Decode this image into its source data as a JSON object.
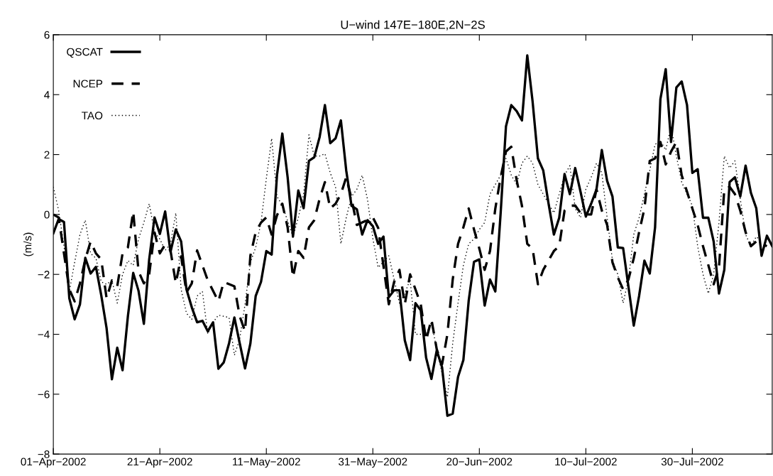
{
  "chart_data": {
    "type": "line",
    "title": "U−wind 147E−180E,2N−2S",
    "ylabel": "(m/s)",
    "xlim": [
      "2002-04-01",
      "2002-08-14"
    ],
    "xticks": [
      {
        "value": "2002-04-01",
        "label": "01−Apr−2002"
      },
      {
        "value": "2002-04-21",
        "label": "21−Apr−2002"
      },
      {
        "value": "2002-05-11",
        "label": "11−May−2002"
      },
      {
        "value": "2002-05-31",
        "label": "31−May−2002"
      },
      {
        "value": "2002-06-20",
        "label": "20−Jun−2002"
      },
      {
        "value": "2002-07-10",
        "label": "10−Jul−2002"
      },
      {
        "value": "2002-07-30",
        "label": "30−Jul−2002"
      }
    ],
    "ylim": [
      -8,
      6
    ],
    "yticks": [
      {
        "value": -8,
        "label": "−8"
      },
      {
        "value": -6,
        "label": "−6"
      },
      {
        "value": -4,
        "label": "−4"
      },
      {
        "value": -2,
        "label": "−2"
      },
      0,
      2,
      4,
      6
    ],
    "tick_labels": "xy",
    "grid": false,
    "legend": "top left",
    "marker": "none",
    "x": [
      "2002-04-01",
      "2002-04-02",
      "2002-04-03",
      "2002-04-04",
      "2002-04-05",
      "2002-04-06",
      "2002-04-07",
      "2002-04-08",
      "2002-04-09",
      "2002-04-10",
      "2002-04-11",
      "2002-04-12",
      "2002-04-13",
      "2002-04-14",
      "2002-04-15",
      "2002-04-16",
      "2002-04-17",
      "2002-04-18",
      "2002-04-19",
      "2002-04-20",
      "2002-04-21",
      "2002-04-22",
      "2002-04-23",
      "2002-04-24",
      "2002-04-25",
      "2002-04-26",
      "2002-04-27",
      "2002-04-28",
      "2002-04-29",
      "2002-04-30",
      "2002-05-01",
      "2002-05-02",
      "2002-05-03",
      "2002-05-04",
      "2002-05-05",
      "2002-05-06",
      "2002-05-07",
      "2002-05-08",
      "2002-05-09",
      "2002-05-10",
      "2002-05-11",
      "2002-05-12",
      "2002-05-13",
      "2002-05-14",
      "2002-05-15",
      "2002-05-16",
      "2002-05-17",
      "2002-05-18",
      "2002-05-19",
      "2002-05-20",
      "2002-05-21",
      "2002-05-22",
      "2002-05-23",
      "2002-05-24",
      "2002-05-25",
      "2002-05-26",
      "2002-05-27",
      "2002-05-28",
      "2002-05-29",
      "2002-05-30",
      "2002-05-31",
      "2002-06-01",
      "2002-06-02",
      "2002-06-03",
      "2002-06-04",
      "2002-06-05",
      "2002-06-06",
      "2002-06-07",
      "2002-06-08",
      "2002-06-09",
      "2002-06-10",
      "2002-06-11",
      "2002-06-12",
      "2002-06-13",
      "2002-06-14",
      "2002-06-15",
      "2002-06-16",
      "2002-06-17",
      "2002-06-18",
      "2002-06-19",
      "2002-06-20",
      "2002-06-21",
      "2002-06-22",
      "2002-06-23",
      "2002-06-24",
      "2002-06-25",
      "2002-06-26",
      "2002-06-27",
      "2002-06-28",
      "2002-06-29",
      "2002-06-30",
      "2002-07-01",
      "2002-07-02",
      "2002-07-03",
      "2002-07-04",
      "2002-07-05",
      "2002-07-06",
      "2002-07-07",
      "2002-07-08",
      "2002-07-09",
      "2002-07-10",
      "2002-07-11",
      "2002-07-12",
      "2002-07-13",
      "2002-07-14",
      "2002-07-15",
      "2002-07-16",
      "2002-07-17",
      "2002-07-18",
      "2002-07-19",
      "2002-07-20",
      "2002-07-21",
      "2002-07-22",
      "2002-07-23",
      "2002-07-24",
      "2002-07-25",
      "2002-07-26",
      "2002-07-27",
      "2002-07-28",
      "2002-07-29",
      "2002-07-30",
      "2002-07-31",
      "2002-08-01",
      "2002-08-02",
      "2002-08-03",
      "2002-08-04",
      "2002-08-05",
      "2002-08-06",
      "2002-08-07",
      "2002-08-08",
      "2002-08-09",
      "2002-08-10",
      "2002-08-11",
      "2002-08-12",
      "2002-08-13",
      "2002-08-14"
    ],
    "series": [
      {
        "name": "QSCAT",
        "color": "#000000",
        "line_style": "solid",
        "values": [
          -0.63,
          -0.15,
          -0.25,
          -2.8,
          -3.5,
          -3.0,
          -1.45,
          -1.97,
          -1.75,
          -2.7,
          -3.8,
          -5.5,
          -4.45,
          -5.2,
          -3.4,
          -1.95,
          -2.55,
          -3.65,
          -1.5,
          -0.1,
          -0.65,
          0.1,
          -1.25,
          -0.5,
          -0.9,
          -2.5,
          -3.1,
          -3.6,
          -3.55,
          -3.9,
          -3.6,
          -5.15,
          -4.94,
          -4.3,
          -3.44,
          -4.3,
          -5.14,
          -4.31,
          -2.72,
          -2.25,
          -1.22,
          -1.34,
          1.31,
          2.7,
          1.24,
          -0.74,
          0.8,
          0.21,
          1.79,
          1.91,
          2.58,
          3.65,
          2.38,
          2.54,
          3.14,
          1.47,
          0.29,
          0.17,
          -0.67,
          -0.19,
          -0.39,
          -0.98,
          -0.74,
          -2.76,
          -2.53,
          -2.53,
          -4.2,
          -4.86,
          -2.96,
          -3.2,
          -4.78,
          -5.49,
          -4.54,
          -5.1,
          -6.72,
          -6.65,
          -5.42,
          -4.86,
          -2.88,
          -1.58,
          -1.5,
          -3.04,
          -2.17,
          -2.57,
          0.05,
          2.94,
          3.65,
          3.45,
          3.14,
          5.31,
          3.77,
          1.87,
          1.47,
          0.36,
          -0.67,
          -0.11,
          1.35,
          0.68,
          1.55,
          0.76,
          -0.07,
          0.36,
          0.84,
          2.15,
          1.12,
          0.6,
          -1.1,
          -1.12,
          -2.41,
          -3.71,
          -2.72,
          -1.54,
          -1.97,
          -0.43,
          3.85,
          4.85,
          2.42,
          4.24,
          4.44,
          3.65,
          1.39,
          1.51,
          -0.11,
          -0.11,
          -0.9,
          -2.64,
          -1.85,
          1.08,
          1.24,
          0.6,
          1.63,
          0.72,
          0.21,
          -1.38,
          -0.71,
          -1.06
        ]
      },
      {
        "name": "NCEP",
        "color": "#000000",
        "line_style": "dashed",
        "x": [
          "2002-04-01",
          "2002-04-02",
          "2002-04-04",
          "2002-04-05",
          "2002-04-06",
          "2002-04-07",
          "2002-04-08",
          "2002-04-09",
          "2002-04-10",
          "2002-04-11",
          "2002-04-12",
          "2002-04-13",
          "2002-04-14",
          "2002-04-15",
          "2002-04-16",
          "2002-04-17",
          "2002-04-18",
          "2002-04-19",
          "2002-04-20",
          "2002-04-21",
          "2002-04-22",
          "2002-04-23",
          "2002-04-24",
          "2002-04-25",
          "2002-04-26",
          "2002-04-27",
          "2002-04-28",
          "2002-04-29",
          "2002-04-30",
          "2002-05-02",
          "2002-05-03",
          "2002-05-05",
          "2002-05-06",
          "2002-05-07",
          "2002-05-08",
          "2002-05-09",
          "2002-05-10",
          "2002-05-11",
          "2002-05-12",
          "2002-05-13",
          "2002-05-14",
          "2002-05-15",
          "2002-05-16",
          "2002-05-17",
          "2002-05-18",
          "2002-05-19",
          "2002-05-20",
          "2002-05-21",
          "2002-05-22",
          "2002-05-23",
          "2002-05-24",
          "2002-05-25",
          "2002-05-26",
          "2002-05-27",
          "2002-05-28",
          "2002-05-31",
          "2002-06-01",
          "2002-06-03",
          "2002-06-04",
          "2002-06-05",
          "2002-06-06",
          "2002-06-07",
          "2002-06-08",
          "2002-06-09",
          "2002-06-10",
          "2002-06-11",
          "2002-06-12",
          "2002-06-13",
          "2002-06-14",
          "2002-06-15",
          "2002-06-16",
          "2002-06-17",
          "2002-06-18",
          "2002-06-19",
          "2002-06-20",
          "2002-06-21",
          "2002-06-22",
          "2002-06-23",
          "2002-06-24",
          "2002-06-25",
          "2002-06-26",
          "2002-06-27",
          "2002-06-28",
          "2002-06-29",
          "2002-06-30",
          "2002-07-01",
          "2002-07-02",
          "2002-07-04",
          "2002-07-05",
          "2002-07-06",
          "2002-07-07",
          "2002-07-08",
          "2002-07-09",
          "2002-07-10",
          "2002-07-11",
          "2002-07-12",
          "2002-07-13",
          "2002-07-14",
          "2002-07-15",
          "2002-07-16",
          "2002-07-17",
          "2002-07-18",
          "2002-07-19",
          "2002-07-20",
          "2002-07-21",
          "2002-07-22",
          "2002-07-23",
          "2002-07-24",
          "2002-07-25",
          "2002-07-26",
          "2002-07-27",
          "2002-07-28",
          "2002-07-29",
          "2002-07-30",
          "2002-07-31",
          "2002-08-01",
          "2002-08-02",
          "2002-08-03",
          "2002-08-04",
          "2002-08-05",
          "2002-08-06",
          "2002-08-07",
          "2002-08-08",
          "2002-08-09",
          "2002-08-10",
          "2002-08-11",
          "2002-08-13"
        ],
        "values": [
          0.0,
          -0.1,
          -2.5,
          -2.9,
          -2.3,
          -1.5,
          -0.9,
          -1.3,
          -1.5,
          -2.8,
          -2.2,
          -2.4,
          -1.3,
          -1.1,
          0.1,
          -1.9,
          -2.3,
          -2.0,
          -0.6,
          -1.3,
          -1.0,
          -1.2,
          -2.3,
          -1.4,
          -2.6,
          -2.3,
          -1.2,
          -1.7,
          -2.2,
          -2.9,
          -2.25,
          -2.4,
          -3.4,
          -3.9,
          -1.38,
          -0.59,
          -0.27,
          -0.1,
          -0.67,
          -0.03,
          0.36,
          -0.43,
          -2.1,
          -1.22,
          -1.45,
          -0.43,
          -0.19,
          0.52,
          1.08,
          0.2,
          0.36,
          0.68,
          1.24,
          0.52,
          -0.35,
          -0.1,
          -0.45,
          -3.0,
          -2.25,
          -1.85,
          -3.0,
          -2.0,
          -2.5,
          -3.0,
          -4.2,
          -3.5,
          -4.5,
          -5.0,
          -4.0,
          -2.17,
          -0.98,
          -0.43,
          0.2,
          -0.5,
          -1.14,
          -1.85,
          -1.22,
          0.2,
          1.24,
          2.1,
          2.26,
          1.15,
          0.29,
          -0.98,
          -1.14,
          -2.33,
          -1.85,
          -1.22,
          -1.06,
          0.13,
          0.29,
          0.3,
          0.05,
          0.0,
          0.0,
          0.84,
          0.13,
          -0.35,
          -1.6,
          -2.1,
          -2.5,
          -2.17,
          -1.46,
          -0.59,
          0.2,
          1.79,
          1.87,
          2.42,
          1.67,
          2.1,
          2.42,
          1.31,
          0.76,
          0.2,
          -0.35,
          -1.06,
          -1.69,
          -2.33,
          -1.77,
          0.84,
          0.92,
          0.68,
          0.13,
          -0.59,
          -1.06,
          -0.9,
          -1.06
        ]
      },
      {
        "name": "TAO",
        "color": "#000000",
        "line_style": "dotted",
        "x": [
          "2002-04-01",
          "2002-04-02",
          "2002-04-03",
          "2002-04-04",
          "2002-04-05",
          "2002-04-06",
          "2002-04-07",
          "2002-04-08",
          "2002-04-09",
          "2002-04-10",
          "2002-04-11",
          "2002-04-12",
          "2002-04-13",
          "2002-04-14",
          "2002-04-15",
          "2002-04-16",
          "2002-04-17",
          "2002-04-18",
          "2002-04-19",
          "2002-04-20",
          "2002-04-21",
          "2002-04-22",
          "2002-04-23",
          "2002-04-24",
          "2002-04-25",
          "2002-04-26",
          "2002-04-27",
          "2002-04-28",
          "2002-04-29",
          "2002-04-30",
          "2002-05-01",
          "2002-05-02",
          "2002-05-04",
          "2002-05-05",
          "2002-05-06",
          "2002-05-07",
          "2002-05-08",
          "2002-05-09",
          "2002-05-10",
          "2002-05-11",
          "2002-05-12",
          "2002-05-13",
          "2002-05-14",
          "2002-05-16",
          "2002-05-17",
          "2002-05-18",
          "2002-05-19",
          "2002-05-20",
          "2002-05-21",
          "2002-05-22",
          "2002-05-23",
          "2002-05-24",
          "2002-05-25",
          "2002-05-26",
          "2002-05-27",
          "2002-05-28",
          "2002-05-29",
          "2002-05-30",
          "2002-05-31",
          "2002-06-01",
          "2002-06-03",
          "2002-06-04",
          "2002-06-05",
          "2002-06-06",
          "2002-06-07",
          "2002-06-08",
          "2002-06-10",
          "2002-06-11",
          "2002-06-12",
          "2002-06-13",
          "2002-06-14",
          "2002-06-15",
          "2002-06-16",
          "2002-06-17",
          "2002-06-18",
          "2002-06-19",
          "2002-06-20",
          "2002-06-21",
          "2002-06-22",
          "2002-06-23",
          "2002-06-24",
          "2002-06-25",
          "2002-06-26",
          "2002-06-27",
          "2002-06-28",
          "2002-06-29",
          "2002-06-30",
          "2002-07-01",
          "2002-07-02",
          "2002-07-03",
          "2002-07-04",
          "2002-07-06",
          "2002-07-07",
          "2002-07-08",
          "2002-07-09",
          "2002-07-10",
          "2002-07-11",
          "2002-07-12",
          "2002-07-13",
          "2002-07-14",
          "2002-07-15",
          "2002-07-16",
          "2002-07-17",
          "2002-07-18",
          "2002-07-19",
          "2002-07-20",
          "2002-07-21",
          "2002-07-22",
          "2002-07-23",
          "2002-07-24",
          "2002-07-25",
          "2002-07-26",
          "2002-07-27",
          "2002-07-28",
          "2002-07-29",
          "2002-07-30",
          "2002-07-31",
          "2002-08-01",
          "2002-08-02",
          "2002-08-03",
          "2002-08-04",
          "2002-08-05",
          "2002-08-06",
          "2002-08-07",
          "2002-08-08",
          "2002-08-09",
          "2002-08-10",
          "2002-08-11",
          "2002-08-12"
        ],
        "values": [
          0.92,
          0.13,
          -1.06,
          -2.57,
          -1.6,
          -0.67,
          -0.19,
          -1.3,
          -1.46,
          -2.25,
          -2.33,
          -2.2,
          -2.96,
          -2.0,
          -1.54,
          -1.7,
          -0.82,
          -0.27,
          0.36,
          -0.59,
          -0.82,
          -1.2,
          -0.98,
          0.05,
          -2.5,
          -3.3,
          -3.5,
          -2.72,
          -2.57,
          -3.99,
          -3.6,
          -3.36,
          -3.44,
          -4.7,
          -4.15,
          -3.0,
          -1.6,
          -1.1,
          -0.27,
          1.2,
          2.54,
          0.6,
          0.3,
          -0.74,
          -0.11,
          0.68,
          2.66,
          1.95,
          1.95,
          2.03,
          1.39,
          0.92,
          -0.98,
          -0.11,
          0.6,
          0.84,
          1.31,
          0.5,
          -0.8,
          -1.77,
          -1.38,
          -2.17,
          -2.96,
          -2.64,
          -2.17,
          -4.0,
          -4.0,
          -3.6,
          -4.5,
          -5.3,
          -6.1,
          -4.3,
          -2.96,
          -1.7,
          -0.98,
          -0.82,
          -0.5,
          -0.27,
          0.68,
          1.0,
          1.31,
          1.87,
          1.31,
          1.0,
          1.71,
          1.95,
          1.71,
          1.0,
          0.68,
          0.36,
          0.05,
          1.31,
          1.63,
          0.2,
          -0.11,
          0.84,
          1.24,
          1.71,
          1.39,
          -0.11,
          -1.54,
          -2.0,
          -2.96,
          -2.17,
          -0.67,
          -0.11,
          0.68,
          1.47,
          2.34,
          2.46,
          2.15,
          2.94,
          1.95,
          1.08,
          0.68,
          0.29,
          -1.06,
          -2.0,
          -2.64,
          -2.0,
          -0.27,
          1.95,
          1.55,
          1.79,
          0.52,
          -0.67,
          -1.06,
          -0.74,
          -0.9
        ]
      }
    ]
  }
}
